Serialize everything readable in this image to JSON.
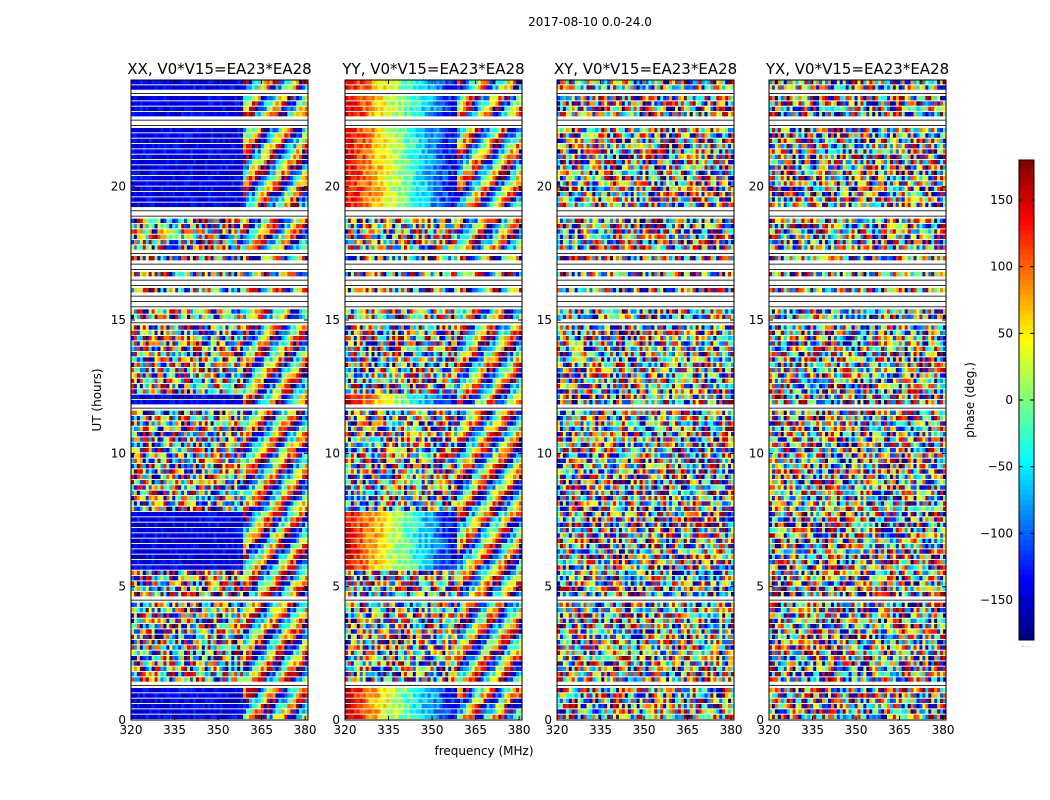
{
  "chart_data": {
    "type": "heatmap",
    "title": "2017-08-10 0.0-24.0",
    "xlabel": "frequency (MHz)",
    "ylabel": "UT (hours)",
    "xlim": [
      320,
      381
    ],
    "ylim": [
      0,
      24
    ],
    "xticks": [
      320,
      335,
      350,
      365,
      380
    ],
    "yticks": [
      0,
      5,
      10,
      15,
      20
    ],
    "panels": [
      {
        "title": "XX, V0*V15=EA23*EA28",
        "pol": "XX",
        "mean_phase": -140
      },
      {
        "title": "YY, V0*V15=EA23*EA28",
        "pol": "YY",
        "mean_phase": 90
      },
      {
        "title": "XY, V0*V15=EA23*EA28",
        "pol": "XY",
        "mean_phase": null
      },
      {
        "title": "YX, V0*V15=EA23*EA28",
        "pol": "YX",
        "mean_phase": null
      }
    ],
    "colorbar": {
      "label": "phase (deg.)",
      "range": [
        -180,
        180
      ],
      "ticks": [
        150,
        100,
        50,
        0,
        -50,
        -100,
        -150
      ],
      "colormap": "jet",
      "extra_label": "....."
    },
    "flagged_ut_ranges": [
      [
        0.95,
        1.05
      ],
      [
        1.3,
        1.45
      ],
      [
        2.9,
        3.05
      ],
      [
        4.5,
        4.65
      ],
      [
        7.95,
        8.05
      ],
      [
        11.7,
        11.85
      ],
      [
        14.9,
        15.05
      ],
      [
        15.4,
        15.9
      ],
      [
        16.3,
        16.6
      ],
      [
        16.9,
        17.2
      ],
      [
        17.4,
        17.6
      ],
      [
        18.9,
        19.2
      ],
      [
        22.3,
        22.6
      ],
      [
        23.4,
        23.55
      ]
    ]
  },
  "colors": {
    "jet_low": "#00007f",
    "jet_mid": "#7fff7f",
    "jet_high": "#7f0000",
    "axes": "#000000"
  }
}
